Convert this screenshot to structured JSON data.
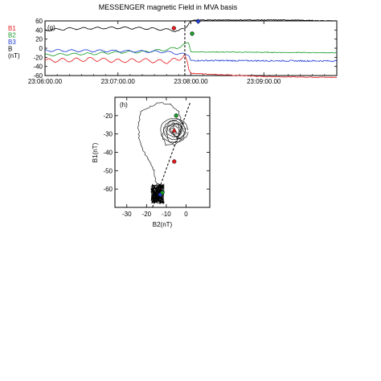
{
  "chart_data": [
    {
      "type": "line",
      "panel_label": "(g)",
      "title": "MESSENGER magnetic Field in MVA basis",
      "ylabel_lines": [
        "B1",
        "B2",
        "B3",
        "B",
        "(nT)"
      ],
      "ylim": [
        -60,
        60
      ],
      "y_ticks": [
        "60",
        "40",
        "20",
        "0",
        "-20",
        "-40",
        "-60"
      ],
      "x_ticks": [
        "23:06:00.00",
        "23:07:00.00",
        "23:08:00.00",
        "23:09:00.00"
      ],
      "x_range_seconds": [
        0,
        240
      ],
      "dashed_line_at": "23:07:55",
      "series": [
        {
          "name": "B1",
          "color": "#e31a1c",
          "x": [
            0,
            20,
            40,
            60,
            80,
            100,
            110,
            115,
            118,
            120,
            160,
            180,
            200,
            240
          ],
          "y": [
            -27,
            -26,
            -24,
            -28,
            -26,
            -30,
            -24,
            -15,
            -45,
            -55,
            -60,
            -62,
            -63,
            -64
          ]
        },
        {
          "name": "B2",
          "color": "#1a9c2a",
          "x": [
            0,
            20,
            40,
            60,
            80,
            100,
            110,
            118,
            120,
            240
          ],
          "y": [
            -15,
            -13,
            -12,
            -9,
            -8,
            -3,
            2,
            12,
            -8,
            -10
          ]
        },
        {
          "name": "B3",
          "color": "#1f3cd6",
          "x": [
            0,
            60,
            100,
            118,
            120,
            240
          ],
          "y": [
            -5,
            -6,
            -8,
            -15,
            -27,
            -28
          ]
        },
        {
          "name": "B",
          "color": "#000000",
          "x": [
            0,
            20,
            40,
            60,
            80,
            100,
            110,
            115,
            120,
            124,
            200,
            240
          ],
          "y": [
            40,
            43,
            44,
            45,
            44,
            41,
            38,
            44,
            60,
            62,
            62,
            60
          ]
        }
      ],
      "markers": [
        {
          "time_s": 106,
          "value": 44,
          "shape": "circle",
          "color": "#e31a1c"
        },
        {
          "time_s": 121,
          "value": 32,
          "shape": "circle",
          "color": "#1a9c2a"
        },
        {
          "time_s": 126,
          "value": 59,
          "shape": "diamond",
          "color": "#1f3cd6"
        }
      ]
    },
    {
      "type": "scatter",
      "panel_label": "(h)",
      "xlabel": "B2(nT)",
      "ylabel": "B1(nT)",
      "xlim": [
        -36,
        12
      ],
      "ylim": [
        -70,
        -10
      ],
      "x_ticks": [
        "-30",
        "-20",
        "-10",
        "0"
      ],
      "y_ticks": [
        "-20",
        "-30",
        "-40",
        "-50",
        "-60"
      ],
      "hodogram_path": {
        "x": [
          -14,
          -15,
          -16,
          -18,
          -20,
          -23,
          -24,
          -24,
          -23,
          -18,
          -14,
          -8,
          -4,
          -2,
          -3,
          -6,
          -10,
          -12,
          -11,
          -8,
          -4,
          -1,
          0,
          -2,
          -6,
          -9,
          -10,
          -9,
          -6,
          -4,
          -3,
          -4,
          -6,
          -8,
          -6,
          -4,
          -2,
          -1,
          -2,
          -4,
          -6,
          -7
        ],
        "y": [
          -64,
          -58,
          -50,
          -46,
          -42,
          -36,
          -30,
          -24,
          -18,
          -15,
          -13,
          -14,
          -18,
          -24,
          -31,
          -35,
          -36,
          -32,
          -27,
          -23,
          -22,
          -25,
          -29,
          -33,
          -36,
          -34,
          -30,
          -26,
          -24,
          -25,
          -28,
          -32,
          -31,
          -28,
          -25,
          -24,
          -26,
          -29,
          -32,
          -33,
          -31,
          -28
        ]
      },
      "black_cluster": {
        "x_range": [
          -18,
          -11
        ],
        "y_range": [
          -68,
          -57
        ]
      },
      "dashed_line": {
        "x": [
          -17,
          2
        ],
        "y": [
          -70,
          -13
        ]
      },
      "markers": [
        {
          "x": -13,
          "y": -63,
          "shape": "diamond",
          "color": "#1f3cd6"
        },
        {
          "x": -12,
          "y": -62,
          "shape": "circle",
          "color": "#1a9c2a"
        },
        {
          "x": -6,
          "y": -45,
          "shape": "circle",
          "color": "#e31a1c"
        },
        {
          "x": -5,
          "y": -20,
          "shape": "circle",
          "color": "#1a9c2a"
        },
        {
          "x": -6,
          "y": -28,
          "shape": "triangle",
          "color": "#e31a1c"
        }
      ]
    }
  ]
}
